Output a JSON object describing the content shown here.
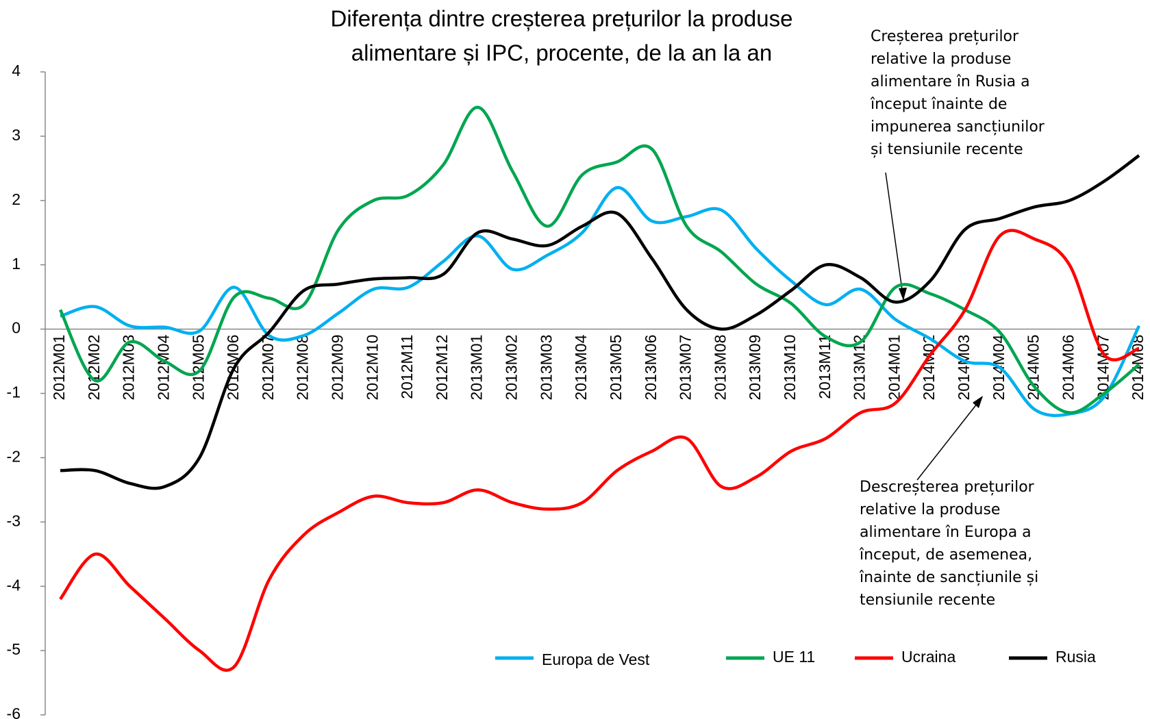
{
  "chart_data": {
    "type": "line",
    "title": [
      "Diferența dintre creșterea prețurilor la produse",
      "alimentare și IPC, procente, de la an la an"
    ],
    "categories": [
      "2012M01",
      "2012M02",
      "2012M03",
      "2012M04",
      "2012M05",
      "2012M06",
      "2012M07",
      "2012M08",
      "2012M09",
      "2012M10",
      "2012M11",
      "2012M12",
      "2013M01",
      "2013M02",
      "2013M03",
      "2013M04",
      "2013M05",
      "2013M06",
      "2013M07",
      "2013M08",
      "2013M09",
      "2013M10",
      "2013M11",
      "2013M12",
      "2014M01",
      "2014M02",
      "2014M03",
      "2014M04",
      "2014M05",
      "2014M06",
      "2014M07",
      "2014M08"
    ],
    "series": [
      {
        "name": "Europa de Vest",
        "color": "#00b0f0",
        "values": [
          0.2,
          0.35,
          0.05,
          0.03,
          -0.03,
          0.65,
          -0.1,
          -0.1,
          0.25,
          0.62,
          0.65,
          1.05,
          1.45,
          0.93,
          1.15,
          1.5,
          2.2,
          1.68,
          1.75,
          1.85,
          1.25,
          0.75,
          0.38,
          0.62,
          0.15,
          -0.15,
          -0.5,
          -0.6,
          -1.25,
          -1.32,
          -1.05,
          0.05
        ]
      },
      {
        "name": "UE 11",
        "color": "#00a650",
        "values": [
          0.3,
          -0.8,
          -0.2,
          -0.5,
          -0.65,
          0.5,
          0.48,
          0.38,
          1.55,
          2.0,
          2.08,
          2.55,
          3.45,
          2.45,
          1.6,
          2.4,
          2.6,
          2.8,
          1.6,
          1.2,
          0.7,
          0.4,
          -0.12,
          -0.2,
          0.65,
          0.55,
          0.3,
          -0.05,
          -0.9,
          -1.3,
          -1.0,
          -0.55
        ]
      },
      {
        "name": "Ucraina",
        "color": "#ff0000",
        "values": [
          -4.2,
          -3.5,
          -4.0,
          -4.5,
          -5.0,
          -5.25,
          -3.9,
          -3.2,
          -2.85,
          -2.6,
          -2.7,
          -2.7,
          -2.5,
          -2.7,
          -2.8,
          -2.7,
          -2.2,
          -1.9,
          -1.7,
          -2.45,
          -2.3,
          -1.9,
          -1.7,
          -1.3,
          -1.15,
          -0.4,
          0.3,
          1.45,
          1.4,
          1.0,
          -0.4,
          -0.3
        ]
      },
      {
        "name": "Rusia",
        "color": "#000000",
        "values": [
          -2.2,
          -2.2,
          -2.4,
          -2.45,
          -2.0,
          -0.6,
          -0.05,
          0.6,
          0.7,
          0.78,
          0.8,
          0.85,
          1.5,
          1.4,
          1.3,
          1.6,
          1.8,
          1.1,
          0.3,
          0.0,
          0.22,
          0.6,
          1.0,
          0.8,
          0.42,
          0.75,
          1.55,
          1.72,
          1.9,
          2.0,
          2.3,
          2.7
        ]
      }
    ],
    "ylim": [
      -6,
      4
    ],
    "yticks": [
      -6,
      -5,
      -4,
      -3,
      -2,
      -1,
      0,
      1,
      2,
      3,
      4
    ],
    "grid": false,
    "annotations": [
      {
        "text": [
          "Creșterea prețurilor",
          "relative la produse",
          "alimentare în Rusia a",
          "început înainte de",
          "impunerea sancțiunilor",
          "și tensiunile recente"
        ]
      },
      {
        "text": [
          "Descreșterea prețurilor",
          "relative la produse",
          "alimentare în Europa a",
          "început, de asemenea,",
          "înainte de sancțiunile și",
          "tensiunile recente"
        ]
      }
    ]
  }
}
